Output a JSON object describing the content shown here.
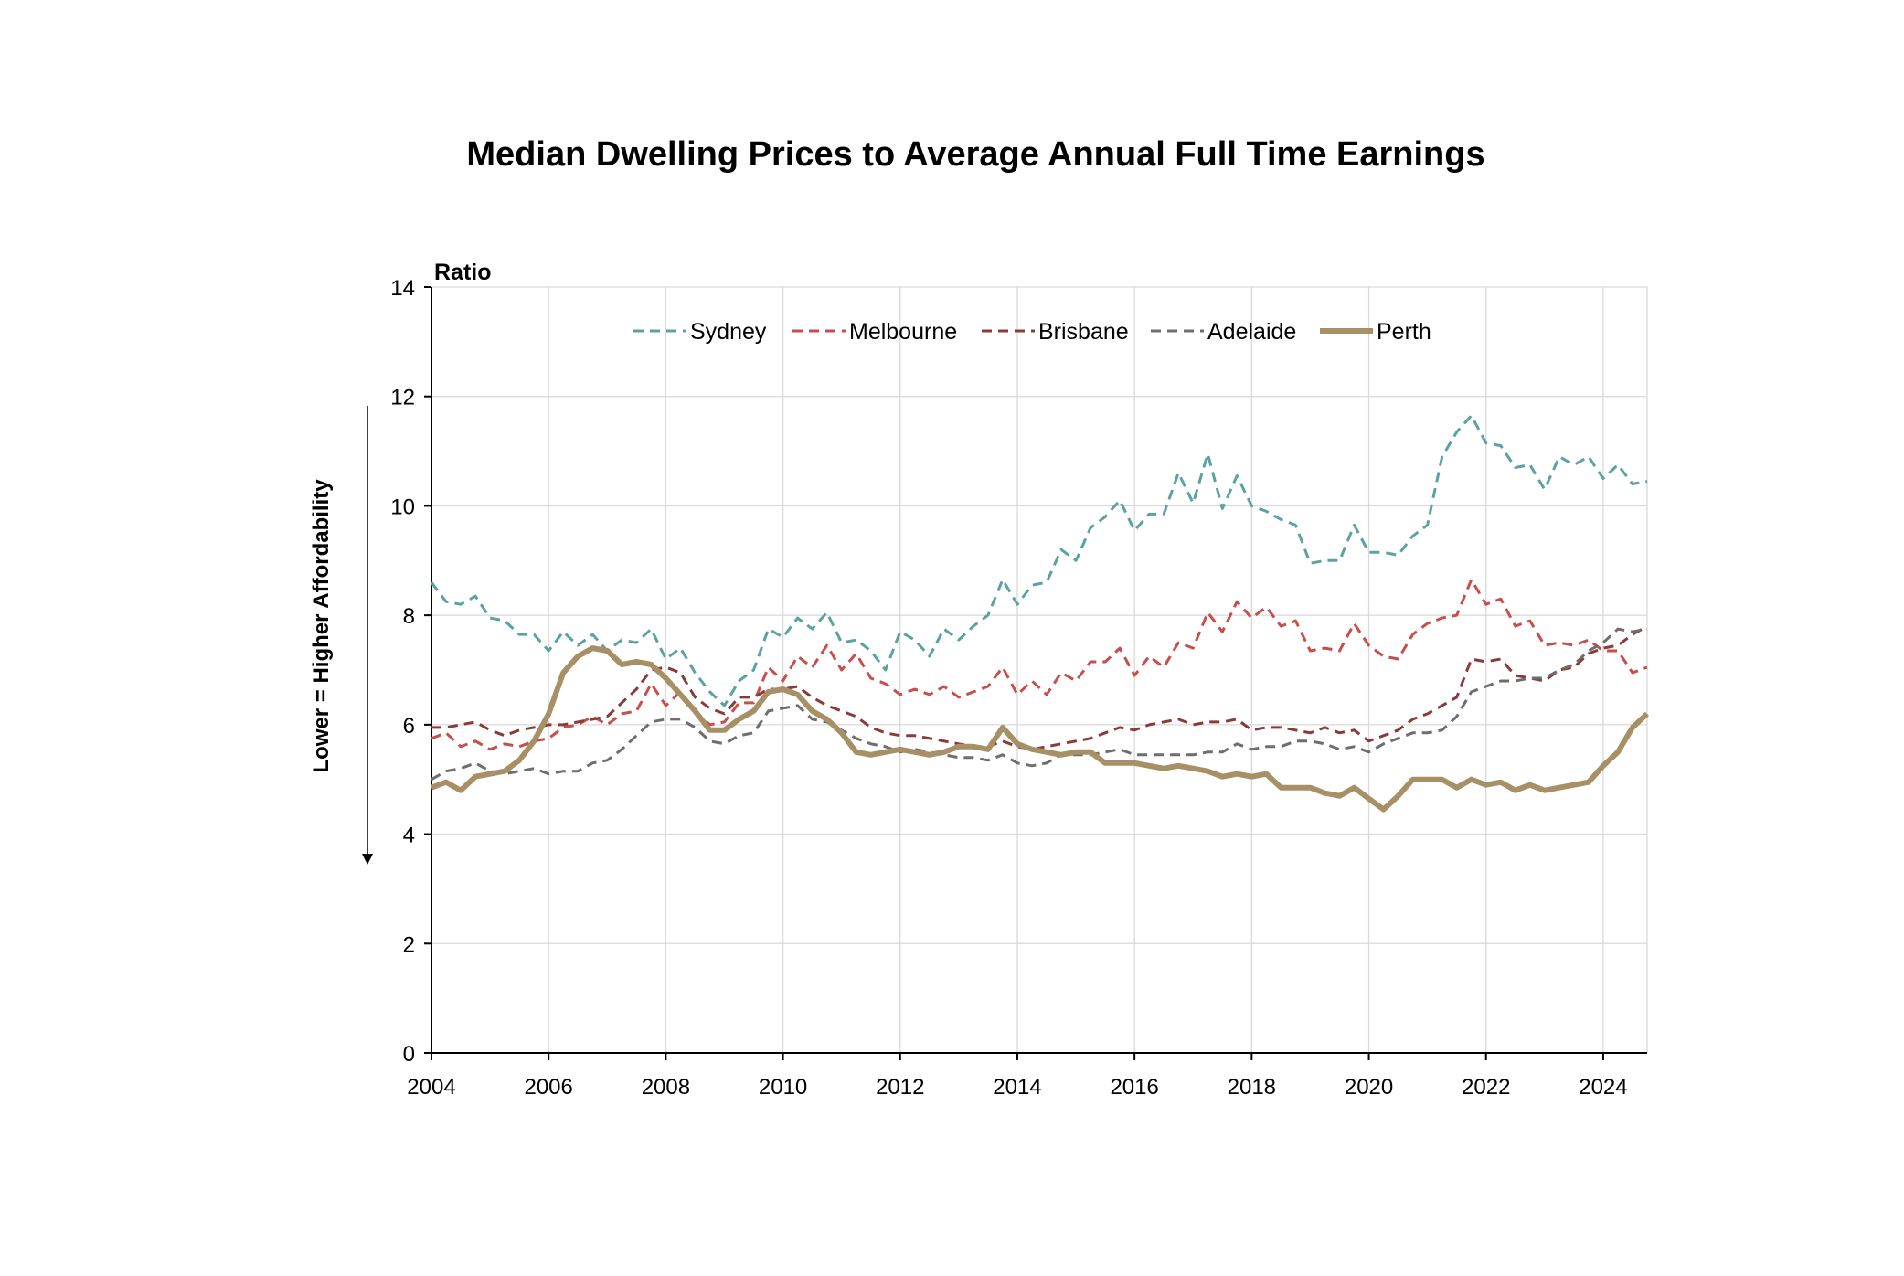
{
  "chart_data": {
    "type": "line",
    "title": "Median Dwelling Prices to Average Annual Full Time Earnings",
    "ylabel": "Ratio",
    "side_note": "Lower = Higher Affordability",
    "xlim": [
      2004.0,
      2024.75
    ],
    "ylim": [
      0,
      14
    ],
    "x_ticks": [
      "2004",
      "2006",
      "2008",
      "2010",
      "2012",
      "2014",
      "2016",
      "2018",
      "2020",
      "2022",
      "2024"
    ],
    "y_ticks": [
      "0",
      "2",
      "4",
      "6",
      "8",
      "10",
      "12",
      "14"
    ],
    "grid": true,
    "legend_position": "top",
    "x": [
      2004.0,
      2004.25,
      2004.5,
      2004.75,
      2005.0,
      2005.25,
      2005.5,
      2005.75,
      2006.0,
      2006.25,
      2006.5,
      2006.75,
      2007.0,
      2007.25,
      2007.5,
      2007.75,
      2008.0,
      2008.25,
      2008.5,
      2008.75,
      2009.0,
      2009.25,
      2009.5,
      2009.75,
      2010.0,
      2010.25,
      2010.5,
      2010.75,
      2011.0,
      2011.25,
      2011.5,
      2011.75,
      2012.0,
      2012.25,
      2012.5,
      2012.75,
      2013.0,
      2013.25,
      2013.5,
      2013.75,
      2014.0,
      2014.25,
      2014.5,
      2014.75,
      2015.0,
      2015.25,
      2015.5,
      2015.75,
      2016.0,
      2016.25,
      2016.5,
      2016.75,
      2017.0,
      2017.25,
      2017.5,
      2017.75,
      2018.0,
      2018.25,
      2018.5,
      2018.75,
      2019.0,
      2019.25,
      2019.5,
      2019.75,
      2020.0,
      2020.25,
      2020.5,
      2020.75,
      2021.0,
      2021.25,
      2021.5,
      2021.75,
      2022.0,
      2022.25,
      2022.5,
      2022.75,
      2023.0,
      2023.25,
      2023.5,
      2023.75,
      2024.0,
      2024.25,
      2024.5,
      2024.75
    ],
    "series": [
      {
        "name": "Sydney",
        "color": "#5ba3a0",
        "style": "dashed",
        "values": [
          8.6,
          8.25,
          8.2,
          8.35,
          7.95,
          7.9,
          7.65,
          7.65,
          7.35,
          7.7,
          7.45,
          7.65,
          7.35,
          7.55,
          7.5,
          7.75,
          7.2,
          7.4,
          6.95,
          6.6,
          6.35,
          6.8,
          7.0,
          7.75,
          7.6,
          7.95,
          7.75,
          8.05,
          7.5,
          7.55,
          7.35,
          7.0,
          7.7,
          7.55,
          7.25,
          7.75,
          7.55,
          7.8,
          8.0,
          8.65,
          8.2,
          8.55,
          8.6,
          9.2,
          9.0,
          9.6,
          9.8,
          10.1,
          9.55,
          9.85,
          9.85,
          10.6,
          10.05,
          10.95,
          9.95,
          10.55,
          10.0,
          9.9,
          9.75,
          9.65,
          8.95,
          9.0,
          9.0,
          9.65,
          9.15,
          9.15,
          9.1,
          9.45,
          9.65,
          10.9,
          11.35,
          11.65,
          11.15,
          11.1,
          10.7,
          10.75,
          10.3,
          10.9,
          10.75,
          10.9,
          10.5,
          10.75,
          10.4,
          10.45
        ]
      },
      {
        "name": "Melbourne",
        "color": "#c84e4a",
        "style": "dashed",
        "values": [
          5.75,
          5.85,
          5.6,
          5.7,
          5.55,
          5.65,
          5.6,
          5.7,
          5.75,
          5.95,
          6.0,
          6.15,
          6.0,
          6.2,
          6.25,
          6.75,
          6.35,
          6.6,
          6.25,
          6.0,
          6.05,
          6.4,
          6.4,
          7.05,
          6.8,
          7.25,
          7.05,
          7.45,
          7.0,
          7.3,
          6.85,
          6.75,
          6.55,
          6.65,
          6.55,
          6.7,
          6.5,
          6.6,
          6.7,
          7.05,
          6.55,
          6.8,
          6.55,
          6.95,
          6.8,
          7.15,
          7.15,
          7.4,
          6.9,
          7.25,
          7.05,
          7.5,
          7.4,
          8.05,
          7.7,
          8.25,
          7.95,
          8.15,
          7.8,
          7.9,
          7.35,
          7.4,
          7.35,
          7.85,
          7.45,
          7.25,
          7.2,
          7.65,
          7.85,
          7.95,
          8.0,
          8.65,
          8.2,
          8.3,
          7.8,
          7.9,
          7.45,
          7.5,
          7.45,
          7.55,
          7.35,
          7.35,
          6.95,
          7.05
        ]
      },
      {
        "name": "Brisbane",
        "color": "#8b3a3a",
        "style": "dashed",
        "values": [
          5.95,
          5.95,
          6.0,
          6.05,
          5.9,
          5.8,
          5.9,
          5.95,
          6.0,
          6.0,
          6.05,
          6.1,
          6.15,
          6.4,
          6.65,
          7.0,
          7.05,
          6.95,
          6.5,
          6.3,
          6.2,
          6.5,
          6.5,
          6.65,
          6.65,
          6.7,
          6.5,
          6.35,
          6.25,
          6.15,
          5.95,
          5.85,
          5.8,
          5.8,
          5.75,
          5.7,
          5.65,
          5.6,
          5.6,
          5.7,
          5.6,
          5.55,
          5.6,
          5.65,
          5.7,
          5.75,
          5.85,
          5.95,
          5.9,
          6.0,
          6.05,
          6.1,
          6.0,
          6.05,
          6.05,
          6.1,
          5.9,
          5.95,
          5.95,
          5.9,
          5.85,
          5.95,
          5.85,
          5.9,
          5.7,
          5.8,
          5.9,
          6.1,
          6.2,
          6.35,
          6.5,
          7.2,
          7.15,
          7.2,
          6.9,
          6.85,
          6.8,
          7.0,
          7.05,
          7.3,
          7.4,
          7.45,
          7.65,
          7.8
        ]
      },
      {
        "name": "Adelaide",
        "color": "#6e6e6e",
        "style": "dashed",
        "values": [
          5.0,
          5.15,
          5.2,
          5.3,
          5.15,
          5.1,
          5.15,
          5.2,
          5.1,
          5.15,
          5.15,
          5.3,
          5.35,
          5.55,
          5.8,
          6.05,
          6.1,
          6.1,
          5.95,
          5.7,
          5.65,
          5.8,
          5.85,
          6.25,
          6.3,
          6.35,
          6.1,
          6.05,
          5.9,
          5.75,
          5.65,
          5.6,
          5.5,
          5.55,
          5.5,
          5.45,
          5.4,
          5.4,
          5.35,
          5.45,
          5.3,
          5.25,
          5.3,
          5.45,
          5.45,
          5.45,
          5.5,
          5.55,
          5.45,
          5.45,
          5.45,
          5.45,
          5.45,
          5.5,
          5.5,
          5.65,
          5.55,
          5.6,
          5.6,
          5.7,
          5.7,
          5.65,
          5.55,
          5.6,
          5.5,
          5.65,
          5.75,
          5.85,
          5.85,
          5.9,
          6.15,
          6.6,
          6.7,
          6.8,
          6.8,
          6.85,
          6.85,
          7.0,
          7.1,
          7.35,
          7.5,
          7.75,
          7.7,
          7.75
        ]
      },
      {
        "name": "Perth",
        "color": "#a89066",
        "style": "solid",
        "values": [
          4.85,
          4.95,
          4.8,
          5.05,
          5.1,
          5.15,
          5.35,
          5.7,
          6.2,
          6.95,
          7.25,
          7.4,
          7.35,
          7.1,
          7.15,
          7.1,
          6.85,
          6.55,
          6.25,
          5.9,
          5.9,
          6.1,
          6.25,
          6.6,
          6.65,
          6.55,
          6.25,
          6.1,
          5.85,
          5.5,
          5.45,
          5.5,
          5.55,
          5.5,
          5.45,
          5.5,
          5.6,
          5.6,
          5.55,
          5.95,
          5.65,
          5.55,
          5.5,
          5.45,
          5.5,
          5.5,
          5.3,
          5.3,
          5.3,
          5.25,
          5.2,
          5.25,
          5.2,
          5.15,
          5.05,
          5.1,
          5.05,
          5.1,
          4.85,
          4.85,
          4.85,
          4.75,
          4.7,
          4.85,
          4.65,
          4.45,
          4.7,
          5.0,
          5.0,
          5.0,
          4.85,
          5.0,
          4.9,
          4.95,
          4.8,
          4.9,
          4.8,
          4.85,
          4.9,
          4.95,
          5.25,
          5.5,
          5.95,
          6.2
        ]
      }
    ]
  }
}
